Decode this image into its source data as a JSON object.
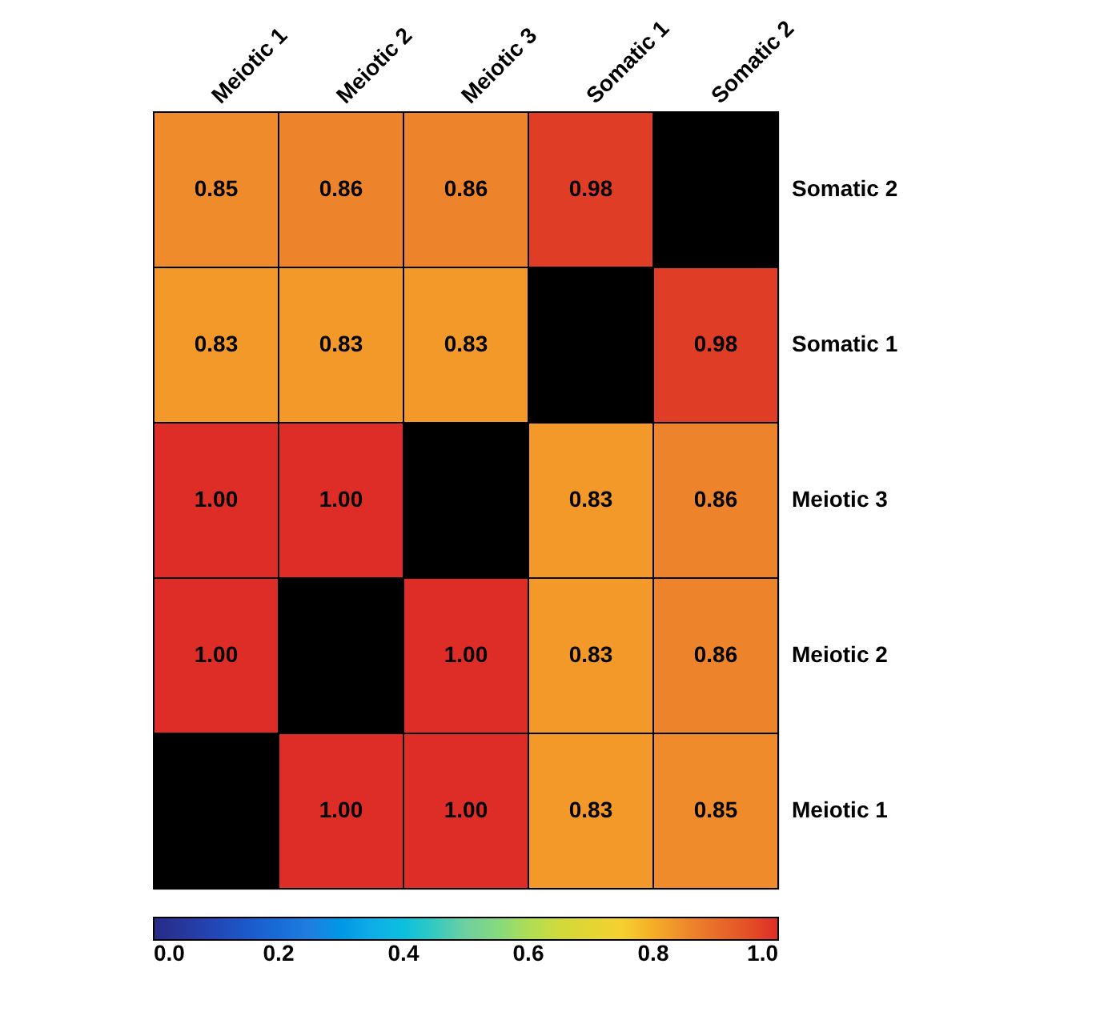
{
  "chart_data": {
    "type": "heatmap",
    "categories": [
      "Meiotic 1",
      "Meiotic 2",
      "Meiotic 3",
      "Somatic 1",
      "Somatic 2"
    ],
    "y_categories": [
      "Somatic 2",
      "Somatic 1",
      "Meiotic 3",
      "Meiotic 2",
      "Meiotic 1"
    ],
    "cells": [
      [
        0.85,
        0.86,
        0.86,
        0.98,
        null
      ],
      [
        0.83,
        0.83,
        0.83,
        null,
        0.98
      ],
      [
        1.0,
        1.0,
        null,
        0.83,
        0.86
      ],
      [
        1.0,
        null,
        1.0,
        0.83,
        0.86
      ],
      [
        null,
        1.0,
        1.0,
        0.83,
        0.85
      ]
    ],
    "cell_labels": [
      [
        "0.85",
        "0.86",
        "0.86",
        "0.98",
        null
      ],
      [
        "0.83",
        "0.83",
        "0.83",
        null,
        "0.98"
      ],
      [
        "1.00",
        "1.00",
        null,
        "0.83",
        "0.86"
      ],
      [
        "1.00",
        null,
        "1.00",
        "0.83",
        "0.86"
      ],
      [
        null,
        "1.00",
        "1.00",
        "0.83",
        "0.85"
      ]
    ],
    "clim": [
      0,
      1
    ],
    "cticks": [
      {
        "value": 0,
        "label": "0.0"
      },
      {
        "value": 0.2,
        "label": "0.2"
      },
      {
        "value": 0.4,
        "label": "0.4"
      },
      {
        "value": 0.6,
        "label": "0.6"
      },
      {
        "value": 0.8,
        "label": "0.8"
      },
      {
        "value": 1,
        "label": "1.0"
      }
    ]
  }
}
